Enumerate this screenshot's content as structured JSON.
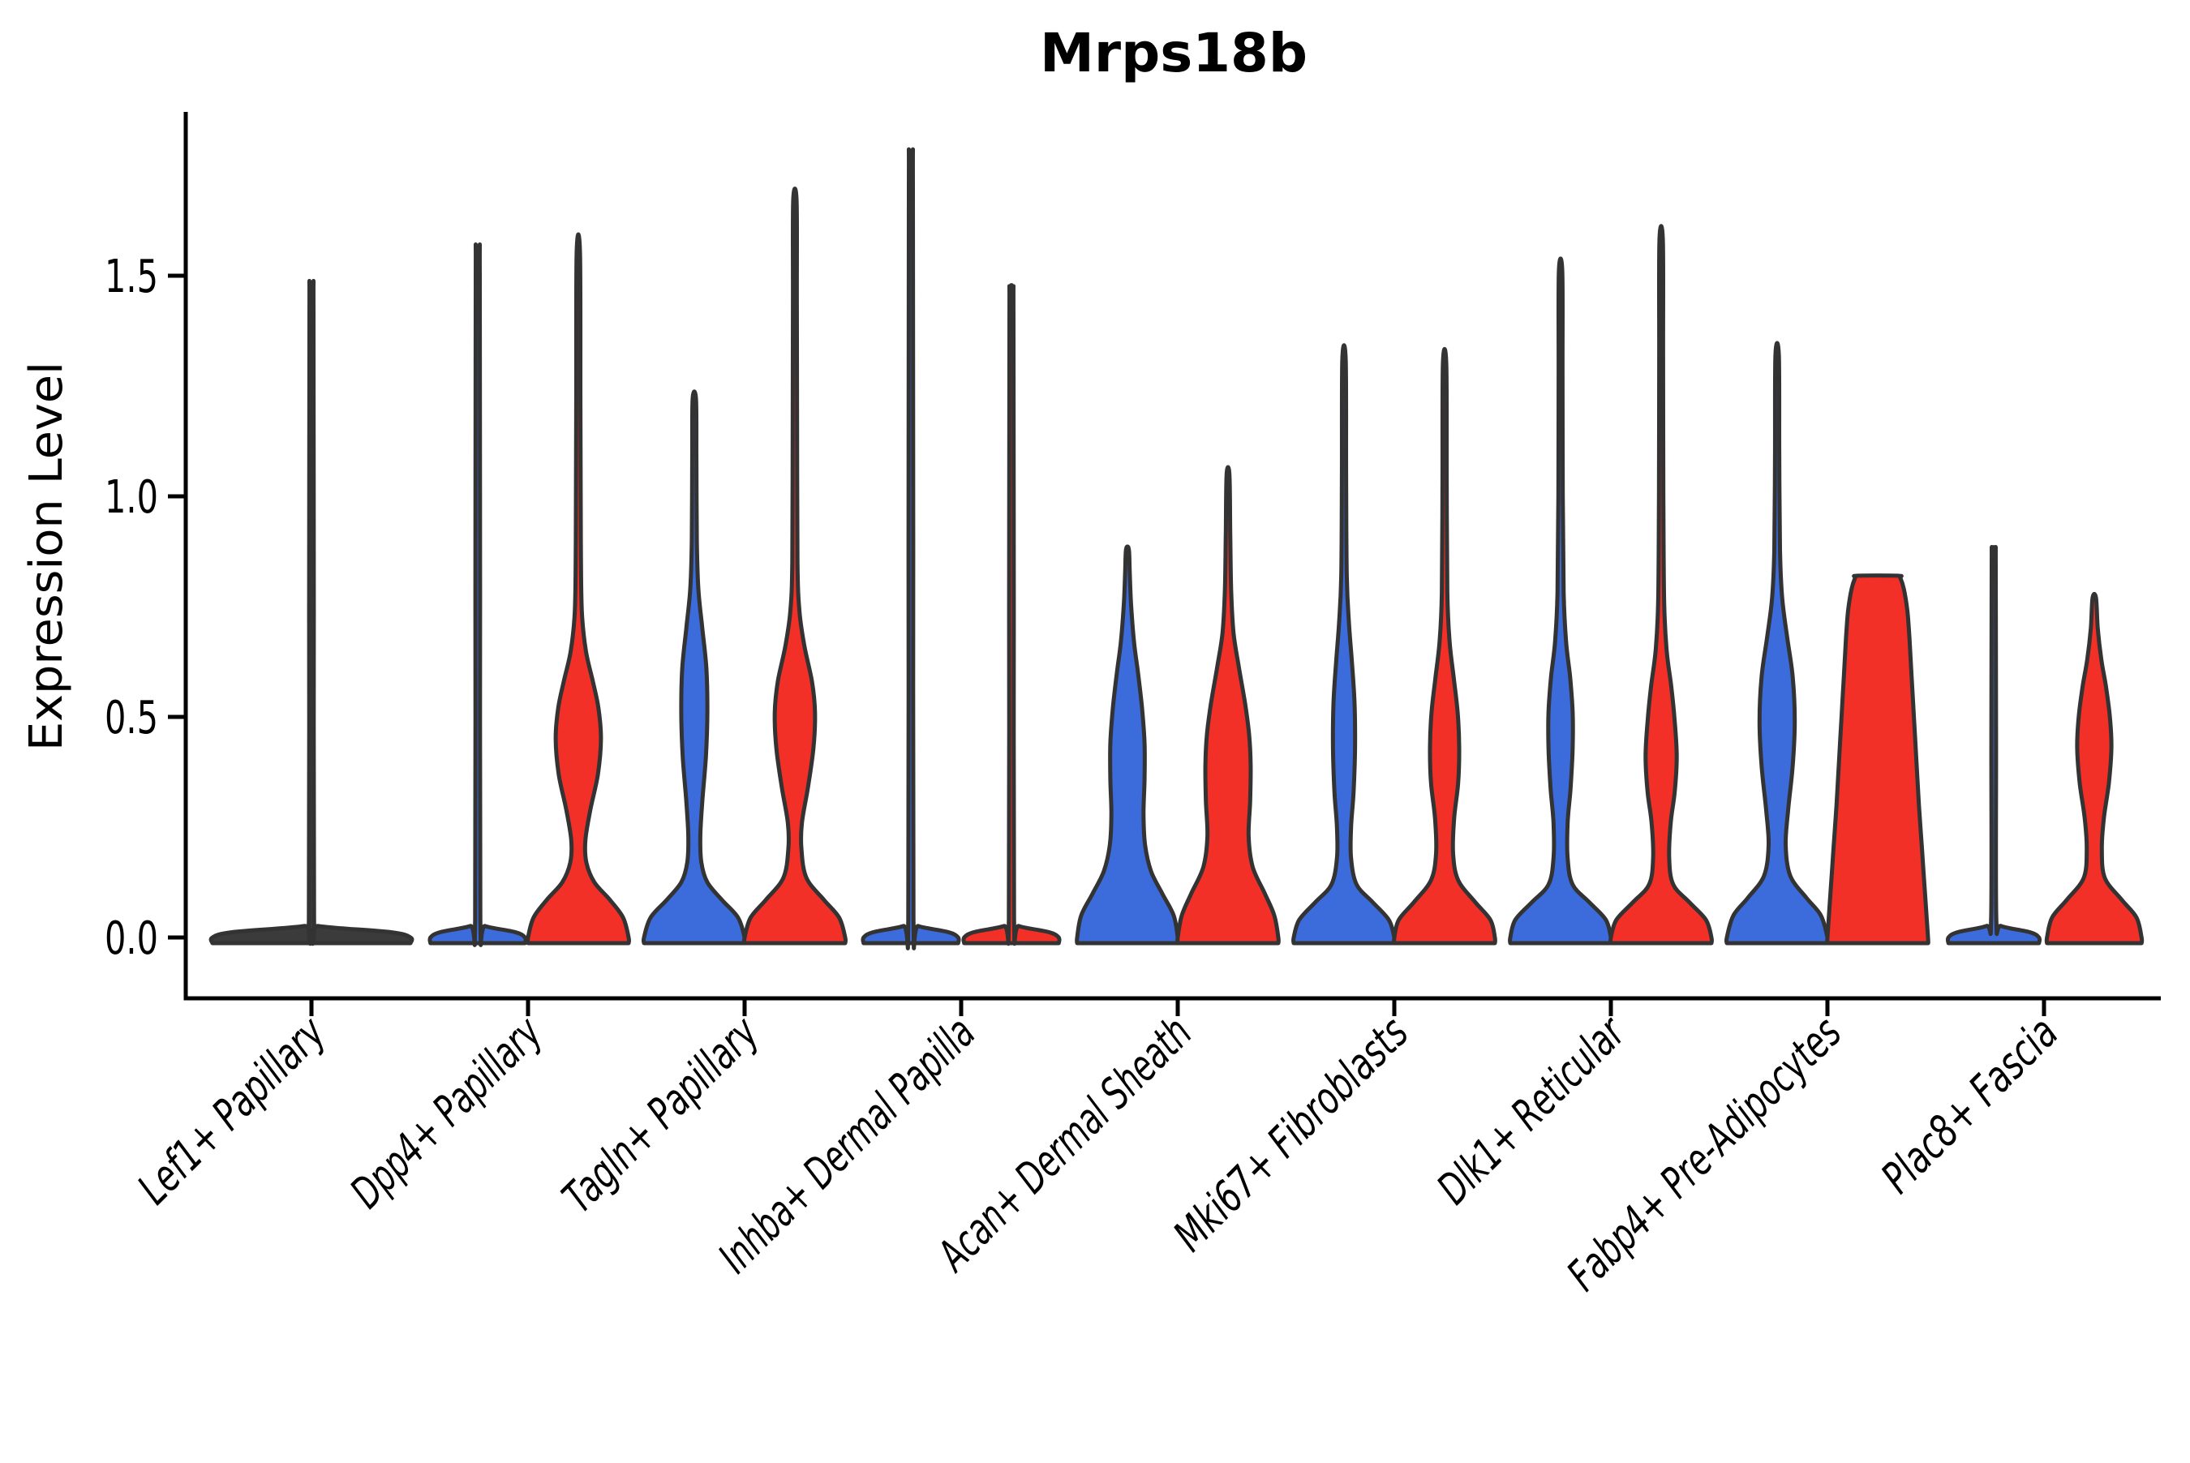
{
  "chart_data": {
    "type": "violin",
    "title": "Mrps18b",
    "ylabel": "Expression Level",
    "xlabel": "",
    "grid": false,
    "legend": null,
    "ylim": [
      -0.14,
      1.87
    ],
    "yticks": [
      {
        "value": 0.0,
        "label": "0.0"
      },
      {
        "value": 0.5,
        "label": "0.5"
      },
      {
        "value": 1.0,
        "label": "1.0"
      },
      {
        "value": 1.5,
        "label": "1.5"
      }
    ],
    "categories": [
      "Lef1+ Papillary",
      "Dpp4+ Papillary",
      "Tagln+ Papillary",
      "Inhba+ Dermal Papilla",
      "Acan+ Dermal Sheath",
      "Mki67+ Fibroblasts",
      "Dlk1+ Reticular",
      "Fabp4+ Pre-Adipocytes",
      "Plac8+ Fascia"
    ],
    "groups": [
      {
        "key": "blue",
        "position": "left",
        "color": "#3C6CDC"
      },
      {
        "key": "red",
        "position": "right",
        "color": "#F23028"
      }
    ],
    "outline_color": "#333333",
    "neutral_fill": "#3b3b3b",
    "violins": [
      {
        "category": 0,
        "group": "single",
        "shape": "flat",
        "top_value": 1.47,
        "peak_value": 0.0,
        "profile": [
          [
            0,
            1.97
          ],
          [
            0.012,
            1.58
          ],
          [
            0.026,
            0.15
          ],
          [
            0.042,
            0.052
          ],
          [
            0.74,
            0.047
          ],
          [
            1.42,
            0.04
          ],
          [
            1.47,
            0.034
          ]
        ]
      },
      {
        "category": 1,
        "group": "blue",
        "shape": "flat",
        "top_value": 1.55,
        "peak_value": 0.0,
        "profile": [
          [
            0,
            0.94
          ],
          [
            0.012,
            0.75
          ],
          [
            0.026,
            0.15
          ],
          [
            0.042,
            0.052
          ],
          [
            0.78,
            0.047
          ],
          [
            1.5,
            0.04
          ],
          [
            1.55,
            0.034
          ]
        ]
      },
      {
        "category": 1,
        "group": "red",
        "shape": "body",
        "top_value": 1.55,
        "peak_value": 0.45,
        "profile": [
          [
            0,
            1.0
          ],
          [
            0.045,
            0.89
          ],
          [
            0.085,
            0.63
          ],
          [
            0.125,
            0.32
          ],
          [
            0.17,
            0.16
          ],
          [
            0.22,
            0.14
          ],
          [
            0.29,
            0.24
          ],
          [
            0.37,
            0.39
          ],
          [
            0.45,
            0.45
          ],
          [
            0.52,
            0.4
          ],
          [
            0.58,
            0.29
          ],
          [
            0.65,
            0.15
          ],
          [
            0.74,
            0.07
          ],
          [
            0.9,
            0.05
          ],
          [
            1.2,
            0.042
          ],
          [
            1.55,
            0.034
          ]
        ]
      },
      {
        "category": 2,
        "group": "blue",
        "shape": "body",
        "top_value": 1.22,
        "peak_value": 0.51,
        "profile": [
          [
            0,
            1.0
          ],
          [
            0.045,
            0.87
          ],
          [
            0.085,
            0.55
          ],
          [
            0.125,
            0.26
          ],
          [
            0.17,
            0.14
          ],
          [
            0.23,
            0.12
          ],
          [
            0.31,
            0.16
          ],
          [
            0.41,
            0.23
          ],
          [
            0.51,
            0.26
          ],
          [
            0.61,
            0.24
          ],
          [
            0.7,
            0.16
          ],
          [
            0.79,
            0.08
          ],
          [
            0.9,
            0.05
          ],
          [
            1.08,
            0.042
          ],
          [
            1.22,
            0.034
          ]
        ]
      },
      {
        "category": 2,
        "group": "red",
        "shape": "body",
        "top_value": 1.67,
        "peak_value": 0.51,
        "profile": [
          [
            0,
            1.0
          ],
          [
            0.045,
            0.88
          ],
          [
            0.085,
            0.58
          ],
          [
            0.135,
            0.23
          ],
          [
            0.2,
            0.13
          ],
          [
            0.26,
            0.14
          ],
          [
            0.34,
            0.26
          ],
          [
            0.43,
            0.37
          ],
          [
            0.51,
            0.4
          ],
          [
            0.58,
            0.34
          ],
          [
            0.66,
            0.19
          ],
          [
            0.74,
            0.09
          ],
          [
            0.85,
            0.052
          ],
          [
            1.15,
            0.044
          ],
          [
            1.45,
            0.038
          ],
          [
            1.67,
            0.034
          ]
        ]
      },
      {
        "category": 3,
        "group": "blue",
        "shape": "flat",
        "top_value": 1.77,
        "peak_value": 0.0,
        "profile": [
          [
            0,
            0.94
          ],
          [
            0.012,
            0.75
          ],
          [
            0.026,
            0.15
          ],
          [
            0.042,
            0.052
          ],
          [
            0.88,
            0.047
          ],
          [
            1.7,
            0.04
          ],
          [
            1.77,
            0.034
          ]
        ]
      },
      {
        "category": 3,
        "group": "red",
        "shape": "flat",
        "top_value": 1.47,
        "peak_value": 0.0,
        "profile": [
          [
            0,
            0.94
          ],
          [
            0.012,
            0.75
          ],
          [
            0.026,
            0.15
          ],
          [
            0.042,
            0.052
          ],
          [
            0.74,
            0.047
          ],
          [
            1.4,
            0.04
          ],
          [
            1.47,
            0.034
          ]
        ]
      },
      {
        "category": 4,
        "group": "blue",
        "shape": "body",
        "top_value": 0.88,
        "peak_value": 0.4,
        "profile": [
          [
            0,
            1.0
          ],
          [
            0.05,
            0.92
          ],
          [
            0.1,
            0.69
          ],
          [
            0.15,
            0.47
          ],
          [
            0.21,
            0.35
          ],
          [
            0.28,
            0.32
          ],
          [
            0.36,
            0.34
          ],
          [
            0.44,
            0.34
          ],
          [
            0.52,
            0.29
          ],
          [
            0.6,
            0.21
          ],
          [
            0.67,
            0.13
          ],
          [
            0.76,
            0.07
          ],
          [
            0.83,
            0.045
          ],
          [
            0.88,
            0.028
          ]
        ]
      },
      {
        "category": 4,
        "group": "red",
        "shape": "body",
        "top_value": 1.05,
        "peak_value": 0.39,
        "profile": [
          [
            0,
            1.0
          ],
          [
            0.05,
            0.92
          ],
          [
            0.1,
            0.73
          ],
          [
            0.16,
            0.49
          ],
          [
            0.23,
            0.41
          ],
          [
            0.31,
            0.44
          ],
          [
            0.39,
            0.45
          ],
          [
            0.46,
            0.42
          ],
          [
            0.53,
            0.34
          ],
          [
            0.61,
            0.22
          ],
          [
            0.69,
            0.11
          ],
          [
            0.79,
            0.062
          ],
          [
            0.92,
            0.044
          ],
          [
            1.05,
            0.028
          ]
        ]
      },
      {
        "category": 5,
        "group": "blue",
        "shape": "body",
        "top_value": 1.31,
        "peak_value": 0.43,
        "profile": [
          [
            0,
            1.0
          ],
          [
            0.04,
            0.89
          ],
          [
            0.08,
            0.57
          ],
          [
            0.12,
            0.25
          ],
          [
            0.18,
            0.14
          ],
          [
            0.25,
            0.14
          ],
          [
            0.33,
            0.19
          ],
          [
            0.43,
            0.22
          ],
          [
            0.53,
            0.21
          ],
          [
            0.62,
            0.16
          ],
          [
            0.71,
            0.1
          ],
          [
            0.82,
            0.055
          ],
          [
            1.05,
            0.042
          ],
          [
            1.31,
            0.034
          ]
        ]
      },
      {
        "category": 5,
        "group": "red",
        "shape": "body",
        "top_value": 1.3,
        "peak_value": 0.43,
        "profile": [
          [
            0,
            1.0
          ],
          [
            0.04,
            0.91
          ],
          [
            0.08,
            0.61
          ],
          [
            0.13,
            0.27
          ],
          [
            0.19,
            0.17
          ],
          [
            0.27,
            0.19
          ],
          [
            0.35,
            0.27
          ],
          [
            0.43,
            0.29
          ],
          [
            0.51,
            0.26
          ],
          [
            0.59,
            0.18
          ],
          [
            0.67,
            0.1
          ],
          [
            0.78,
            0.055
          ],
          [
            1.03,
            0.042
          ],
          [
            1.3,
            0.034
          ]
        ]
      },
      {
        "category": 6,
        "group": "blue",
        "shape": "body",
        "top_value": 1.51,
        "peak_value": 0.47,
        "profile": [
          [
            0,
            1.0
          ],
          [
            0.04,
            0.9
          ],
          [
            0.08,
            0.57
          ],
          [
            0.12,
            0.24
          ],
          [
            0.18,
            0.14
          ],
          [
            0.26,
            0.14
          ],
          [
            0.34,
            0.2
          ],
          [
            0.43,
            0.24
          ],
          [
            0.51,
            0.24
          ],
          [
            0.59,
            0.19
          ],
          [
            0.67,
            0.11
          ],
          [
            0.78,
            0.062
          ],
          [
            1.0,
            0.044
          ],
          [
            1.28,
            0.038
          ],
          [
            1.51,
            0.034
          ]
        ]
      },
      {
        "category": 6,
        "group": "red",
        "shape": "body",
        "top_value": 1.58,
        "peak_value": 0.41,
        "profile": [
          [
            0,
            1.0
          ],
          [
            0.04,
            0.89
          ],
          [
            0.08,
            0.56
          ],
          [
            0.12,
            0.24
          ],
          [
            0.18,
            0.16
          ],
          [
            0.26,
            0.19
          ],
          [
            0.33,
            0.27
          ],
          [
            0.41,
            0.31
          ],
          [
            0.49,
            0.27
          ],
          [
            0.57,
            0.2
          ],
          [
            0.65,
            0.11
          ],
          [
            0.76,
            0.06
          ],
          [
            1.0,
            0.044
          ],
          [
            1.32,
            0.038
          ],
          [
            1.58,
            0.034
          ]
        ]
      },
      {
        "category": 7,
        "group": "blue",
        "shape": "body",
        "top_value": 1.32,
        "peak_value": 0.49,
        "profile": [
          [
            0,
            1.0
          ],
          [
            0.05,
            0.87
          ],
          [
            0.09,
            0.58
          ],
          [
            0.14,
            0.26
          ],
          [
            0.21,
            0.17
          ],
          [
            0.29,
            0.22
          ],
          [
            0.39,
            0.31
          ],
          [
            0.49,
            0.35
          ],
          [
            0.59,
            0.31
          ],
          [
            0.68,
            0.2
          ],
          [
            0.77,
            0.1
          ],
          [
            0.88,
            0.057
          ],
          [
            1.1,
            0.042
          ],
          [
            1.32,
            0.034
          ]
        ]
      },
      {
        "category": 7,
        "group": "red",
        "shape": "flat_top",
        "top_value": 0.82,
        "peak_value": 0.0,
        "profile": [
          [
            0,
            1.0
          ],
          [
            0.1,
            0.94
          ],
          [
            0.2,
            0.88
          ],
          [
            0.3,
            0.82
          ],
          [
            0.4,
            0.77
          ],
          [
            0.5,
            0.72
          ],
          [
            0.6,
            0.67
          ],
          [
            0.68,
            0.63
          ],
          [
            0.74,
            0.59
          ],
          [
            0.79,
            0.52
          ],
          [
            0.815,
            0.45
          ],
          [
            0.82,
            0.4
          ]
        ]
      },
      {
        "category": 8,
        "group": "blue",
        "shape": "flat",
        "top_value": 0.88,
        "peak_value": 0.0,
        "profile": [
          [
            0,
            0.9
          ],
          [
            0.012,
            0.72
          ],
          [
            0.026,
            0.15
          ],
          [
            0.042,
            0.052
          ],
          [
            0.44,
            0.047
          ],
          [
            0.84,
            0.04
          ],
          [
            0.88,
            0.034
          ]
        ]
      },
      {
        "category": 8,
        "group": "red",
        "shape": "body",
        "top_value": 0.77,
        "peak_value": 0.43,
        "profile": [
          [
            0,
            0.94
          ],
          [
            0.045,
            0.84
          ],
          [
            0.085,
            0.55
          ],
          [
            0.135,
            0.21
          ],
          [
            0.2,
            0.15
          ],
          [
            0.27,
            0.19
          ],
          [
            0.35,
            0.29
          ],
          [
            0.43,
            0.34
          ],
          [
            0.5,
            0.31
          ],
          [
            0.57,
            0.23
          ],
          [
            0.63,
            0.14
          ],
          [
            0.7,
            0.07
          ],
          [
            0.77,
            0.034
          ]
        ]
      }
    ]
  }
}
